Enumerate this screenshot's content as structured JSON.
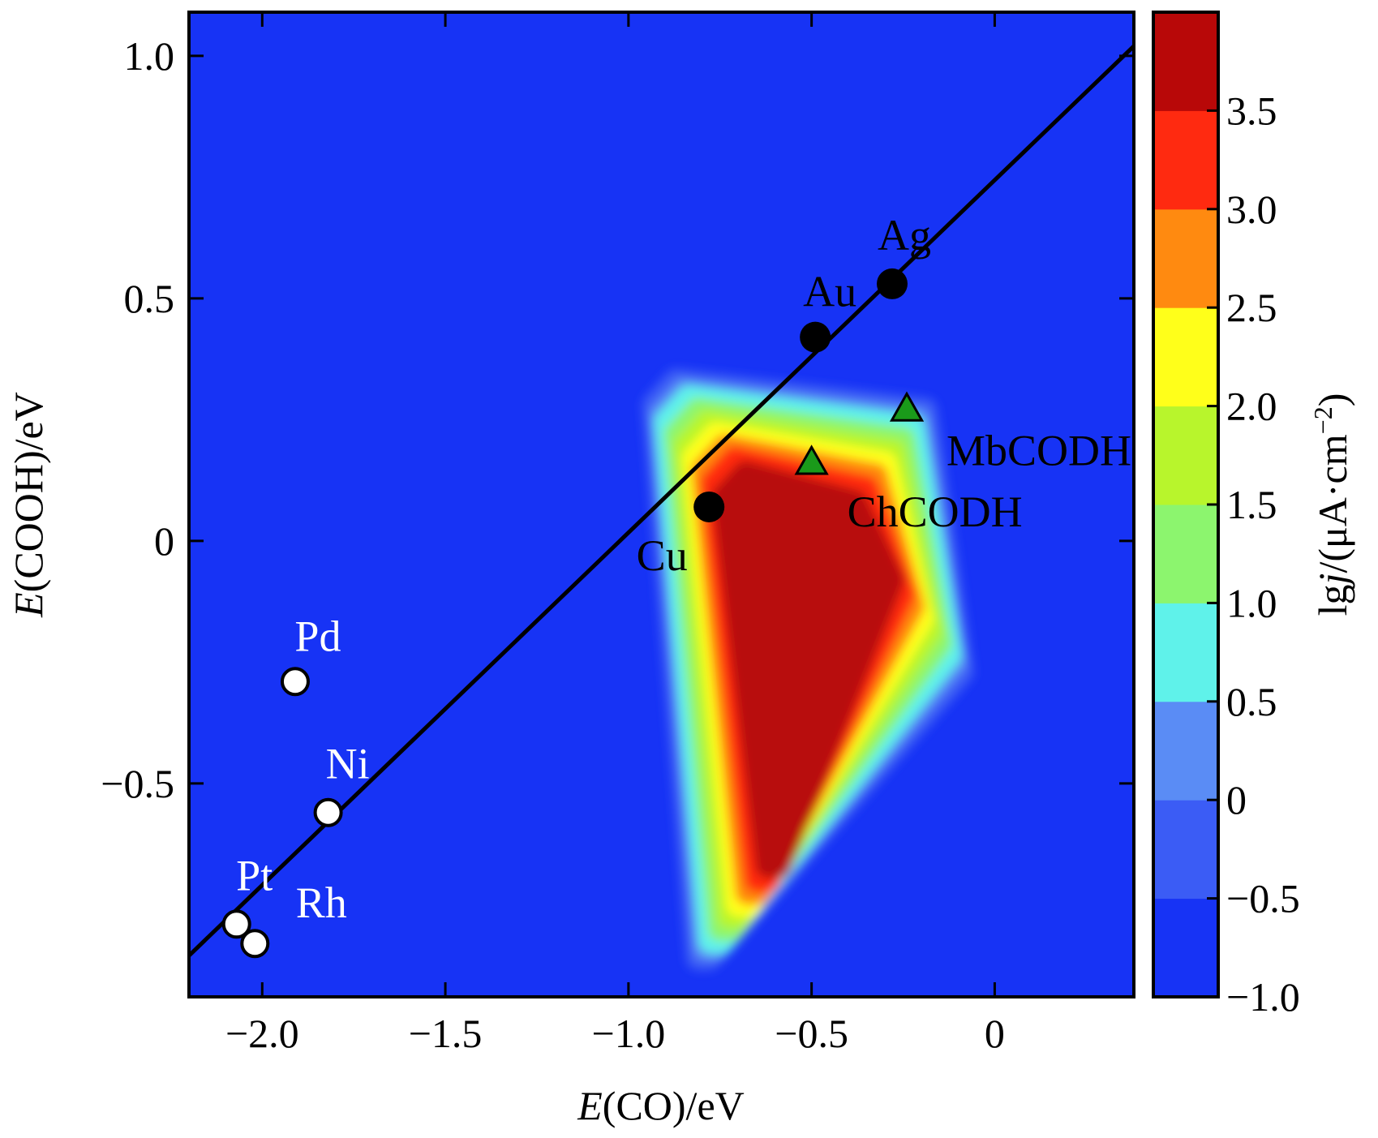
{
  "chart_data": {
    "type": "heatmap",
    "xlabel_italic": "E",
    "xlabel_rest": "(CO)/eV",
    "ylabel_italic": "E",
    "ylabel_rest": "(COOH)/eV",
    "xlim": [
      -2.2,
      0.38
    ],
    "ylim": [
      -0.94,
      1.09
    ],
    "xticks": [
      -2.0,
      -1.5,
      -1.0,
      -0.5,
      0
    ],
    "xtick_labels": [
      "−2.0",
      "−1.5",
      "−1.0",
      "−0.5",
      "0"
    ],
    "yticks": [
      -0.5,
      0,
      0.5,
      1.0
    ],
    "ytick_labels": [
      "−0.5",
      "0",
      "0.5",
      "1.0"
    ],
    "grid": false,
    "scaling_line": {
      "x": [
        -2.2,
        0.38
      ],
      "y": [
        -0.855,
        1.02
      ]
    },
    "contour_peak": {
      "x": -0.45,
      "y": -0.05
    },
    "colorbar": {
      "label_prefix": "lg",
      "label_italic": "j",
      "label_rest": "/(μA·cm",
      "label_sup": "−2",
      "label_close": ")",
      "range": [
        -1.0,
        4.0
      ],
      "ticks": [
        -1.0,
        -0.5,
        0,
        0.5,
        1.0,
        1.5,
        2.0,
        2.5,
        3.0,
        3.5
      ],
      "tick_labels": [
        "−1.0",
        "−0.5",
        "0",
        "0.5",
        "1.0",
        "1.5",
        "2.0",
        "2.5",
        "3.0",
        "3.5"
      ],
      "levels": [
        {
          "from": -1.0,
          "to": -0.5,
          "color": "#1733f5"
        },
        {
          "from": -0.5,
          "to": 0.0,
          "color": "#3b5cf5"
        },
        {
          "from": 0.0,
          "to": 0.5,
          "color": "#5a8cf5"
        },
        {
          "from": 0.5,
          "to": 1.0,
          "color": "#5ff2ea"
        },
        {
          "from": 1.0,
          "to": 1.5,
          "color": "#8cf56e"
        },
        {
          "from": 1.5,
          "to": 2.0,
          "color": "#b8f52c"
        },
        {
          "from": 2.0,
          "to": 2.5,
          "color": "#ffff1a"
        },
        {
          "from": 2.5,
          "to": 3.0,
          "color": "#ff8a10"
        },
        {
          "from": 3.0,
          "to": 3.5,
          "color": "#ff2a10"
        },
        {
          "from": 3.5,
          "to": 4.0,
          "color": "#b80808"
        }
      ]
    },
    "series": [
      {
        "name": "",
        "marker": "filled-circle",
        "color": "#000000",
        "points": [
          {
            "label": "Ag",
            "x": -0.28,
            "y": 0.53
          },
          {
            "label": "Au",
            "x": -0.49,
            "y": 0.42
          },
          {
            "label": "Cu",
            "x": -0.78,
            "y": 0.07
          }
        ]
      },
      {
        "name": "",
        "marker": "open-circle",
        "color": "#ffffff",
        "points": [
          {
            "label": "Pd",
            "x": -1.91,
            "y": -0.29
          },
          {
            "label": "Ni",
            "x": -1.82,
            "y": -0.56
          },
          {
            "label": "Pt",
            "x": -2.07,
            "y": -0.79
          },
          {
            "label": "Rh",
            "x": -2.02,
            "y": -0.83
          }
        ]
      },
      {
        "name": "",
        "marker": "triangle",
        "color": "#1a9a1a",
        "points": [
          {
            "label": "MbCODH",
            "x": -0.24,
            "y": 0.27
          },
          {
            "label": "ChCODH",
            "x": -0.5,
            "y": 0.16
          }
        ]
      }
    ]
  }
}
